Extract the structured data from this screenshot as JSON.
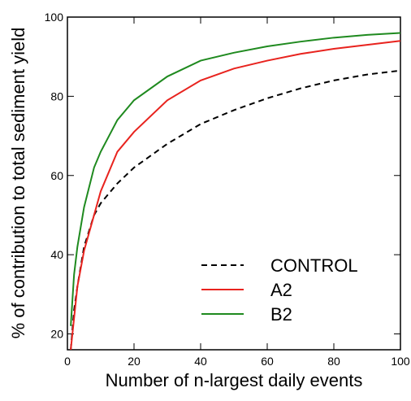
{
  "chart_data": {
    "type": "line",
    "xlabel": "Number of n-largest daily events",
    "ylabel": "% of contribution to total sediment yield",
    "x": [
      1,
      2,
      3,
      5,
      8,
      10,
      15,
      20,
      30,
      40,
      50,
      60,
      70,
      80,
      90,
      100
    ],
    "series": [
      {
        "name": "CONTROL",
        "color": "#000000",
        "style": "dashed",
        "values": [
          16,
          26,
          32,
          42,
          50,
          53,
          58,
          62,
          68,
          73,
          76.5,
          79.5,
          82,
          84,
          85.5,
          86.5
        ]
      },
      {
        "name": "A2",
        "color": "#e8231e",
        "style": "solid",
        "values": [
          16,
          24,
          32,
          41,
          50,
          56,
          66,
          71,
          79,
          84,
          87,
          89,
          90.7,
          92,
          93,
          94
        ]
      },
      {
        "name": "B2",
        "color": "#1f8a1f",
        "style": "solid",
        "values": [
          22,
          35,
          42,
          52,
          62,
          66,
          74,
          79,
          85,
          89,
          91,
          92.6,
          93.8,
          94.8,
          95.5,
          96
        ]
      }
    ],
    "xlim": [
      0,
      100
    ],
    "xticks": [
      0,
      20,
      40,
      60,
      80,
      100
    ],
    "ylim": [
      16,
      100
    ],
    "yticks": [
      20,
      40,
      60,
      80,
      100
    ],
    "legend": "lower right"
  }
}
